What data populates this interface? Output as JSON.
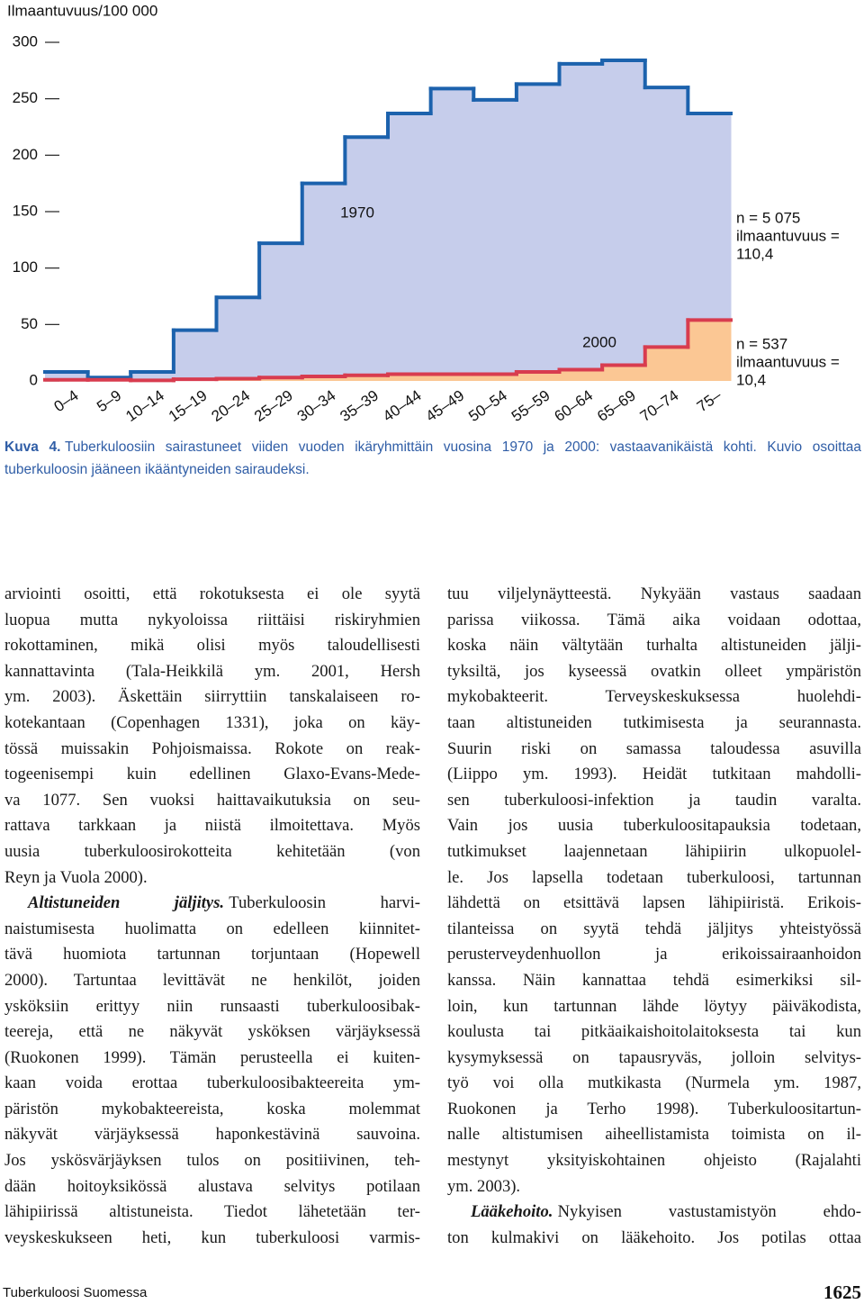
{
  "chart_data": {
    "type": "step",
    "y_label": "Ilmaantuvuus/100 000",
    "categories": [
      "0–4",
      "5–9",
      "10–14",
      "15–19",
      "20–24",
      "25–29",
      "30–34",
      "35–39",
      "40–44",
      "45–49",
      "50–54",
      "55–59",
      "60–64",
      "65–69",
      "70–74",
      "75–"
    ],
    "series": [
      {
        "name": "1970",
        "color": "#1c62ad",
        "fill": "#c6cdeb",
        "values": [
          8,
          3,
          8,
          45,
          74,
          122,
          175,
          216,
          237,
          259,
          249,
          263,
          281,
          284,
          260,
          237
        ]
      },
      {
        "name": "2000",
        "color": "#d83c4f",
        "fill": "#fbc794",
        "values": [
          1,
          1,
          0.5,
          1.5,
          2,
          3,
          4,
          5,
          6,
          6,
          6,
          8,
          10,
          14,
          30,
          54
        ]
      }
    ],
    "ylim": [
      0,
      300
    ],
    "yticks": [
      0,
      50,
      100,
      150,
      200,
      250,
      300
    ],
    "annotations": [
      [
        "n = 5 075",
        "ilmaantuvuus =",
        "110,4"
      ],
      [
        "n = 537",
        "ilmaantuvuus =",
        "10,4"
      ]
    ]
  },
  "caption": {
    "label": "Kuva 4.",
    "text": "Tuberkuloosiin sairastuneet viiden vuoden ikäryhmittäin vuosina 1970 ja 2000: vastaavanikäistä kohti. Kuvio osoittaa tuberkuloosin jääneen ikääntyneiden sairaudeksi."
  },
  "body": {
    "columns": [
      [
        "arviointi osoitti, että rokotuksesta ei ole syytä",
        "luopua mutta nykyoloissa riittäisi riskiryhmien",
        "rokottaminen, mikä olisi myös taloudellisesti",
        "kannattavinta (Tala-Heikkilä ym. 2001, Hersh",
        "ym. 2003). Äskettäin siirryttiin tanskalaiseen ro-",
        "kotekantaan (Copenhagen 1331), joka on käy-",
        "tössä muissakin Pohjoismaissa. Rokote on reak-",
        "togeenisempi kuin edellinen Glaxo-Evans-Mede-",
        "va 1077. Sen vuoksi haittavaikutuksia on seu-",
        "rattava tarkkaan ja niistä ilmoitettava. Myös",
        "uusia tuberkuloosirokotteita kehitetään (von",
        "Reyn ja Vuola 2000).",
        {
          "em": "Altistuneiden jäljitys.",
          "text": "Tuberkuloosin harvi-"
        },
        "naistumisesta huolimatta on edelleen kiinnitet-",
        "tävä huomiota tartunnan torjuntaan (Hopewell",
        "2000). Tartuntaa levittävät ne henkilöt, joiden",
        "ysköksiin erittyy niin runsaasti tuberkuloosibak-",
        "teereja, että ne näkyvät ysköksen värjäyksessä",
        "(Ruokonen 1999). Tämän perusteella ei kuiten-",
        "kaan voida erottaa tuberkuloosibakteereita ym-",
        "päristön mykobakteereista, koska molemmat",
        "näkyvät värjäyksessä haponkestävinä sauvoina.",
        "Jos yskösvärjäyksen tulos on positiivinen, teh-",
        "dään hoitoyksikössä alustava selvitys potilaan",
        "lähipiirissä altistuneista. Tiedot lähetetään ter-",
        "veyskeskukseen heti, kun tuberkuloosi varmis-"
      ],
      [
        "tuu viljelynäytteestä. Nykyään vastaus saadaan",
        "parissa viikossa. Tämä aika voidaan odottaa,",
        "koska näin vältytään turhalta altistuneiden jälji-",
        "tyksiltä, jos kyseessä ovatkin olleet ympäristön",
        "mykobakteerit. Terveyskeskuksessa huolehdi-",
        "taan altistuneiden tutkimisesta ja seurannasta.",
        "Suurin riski on samassa taloudessa asuvilla",
        "(Liippo ym. 1993). Heidät tutkitaan mahdolli-",
        "sen tuberkuloosi-infektion ja taudin varalta.",
        "Vain jos uusia tuberkuloositapauksia todetaan,",
        "tutkimukset laajennetaan lähipiirin ulkopuolel-",
        "le. Jos lapsella todetaan tuberkuloosi, tartunnan",
        "lähdettä on etsittävä lapsen lähipiiristä. Erikois-",
        "tilanteissa on syytä tehdä jäljitys yhteistyössä",
        "perusterveydenhuollon ja erikoissairaanhoidon",
        "kanssa. Näin kannattaa tehdä esimerkiksi sil-",
        "loin, kun tartunnan lähde löytyy päiväkodista,",
        "koulusta tai pitkäaikaishoitolaitoksesta tai kun",
        "kysymyksessä on tapausryväs, jolloin selvitys-",
        "työ voi olla mutkikasta (Nurmela ym. 1987,",
        "Ruokonen ja Terho 1998). Tuberkuloositartun-",
        "nalle altistumisen aiheellistamista toimista on il-",
        "mestynyt yksityiskohtainen ohjeisto (Rajalahti",
        "ym. 2003).",
        {
          "em": "Lääkehoito.",
          "text": "Nykyisen vastustamistyön ehdo-"
        },
        "ton kulmakivi on lääkehoito. Jos potilas ottaa"
      ]
    ]
  },
  "footer": {
    "journal": "Tuberkuloosi Suomessa",
    "page": "1625"
  }
}
